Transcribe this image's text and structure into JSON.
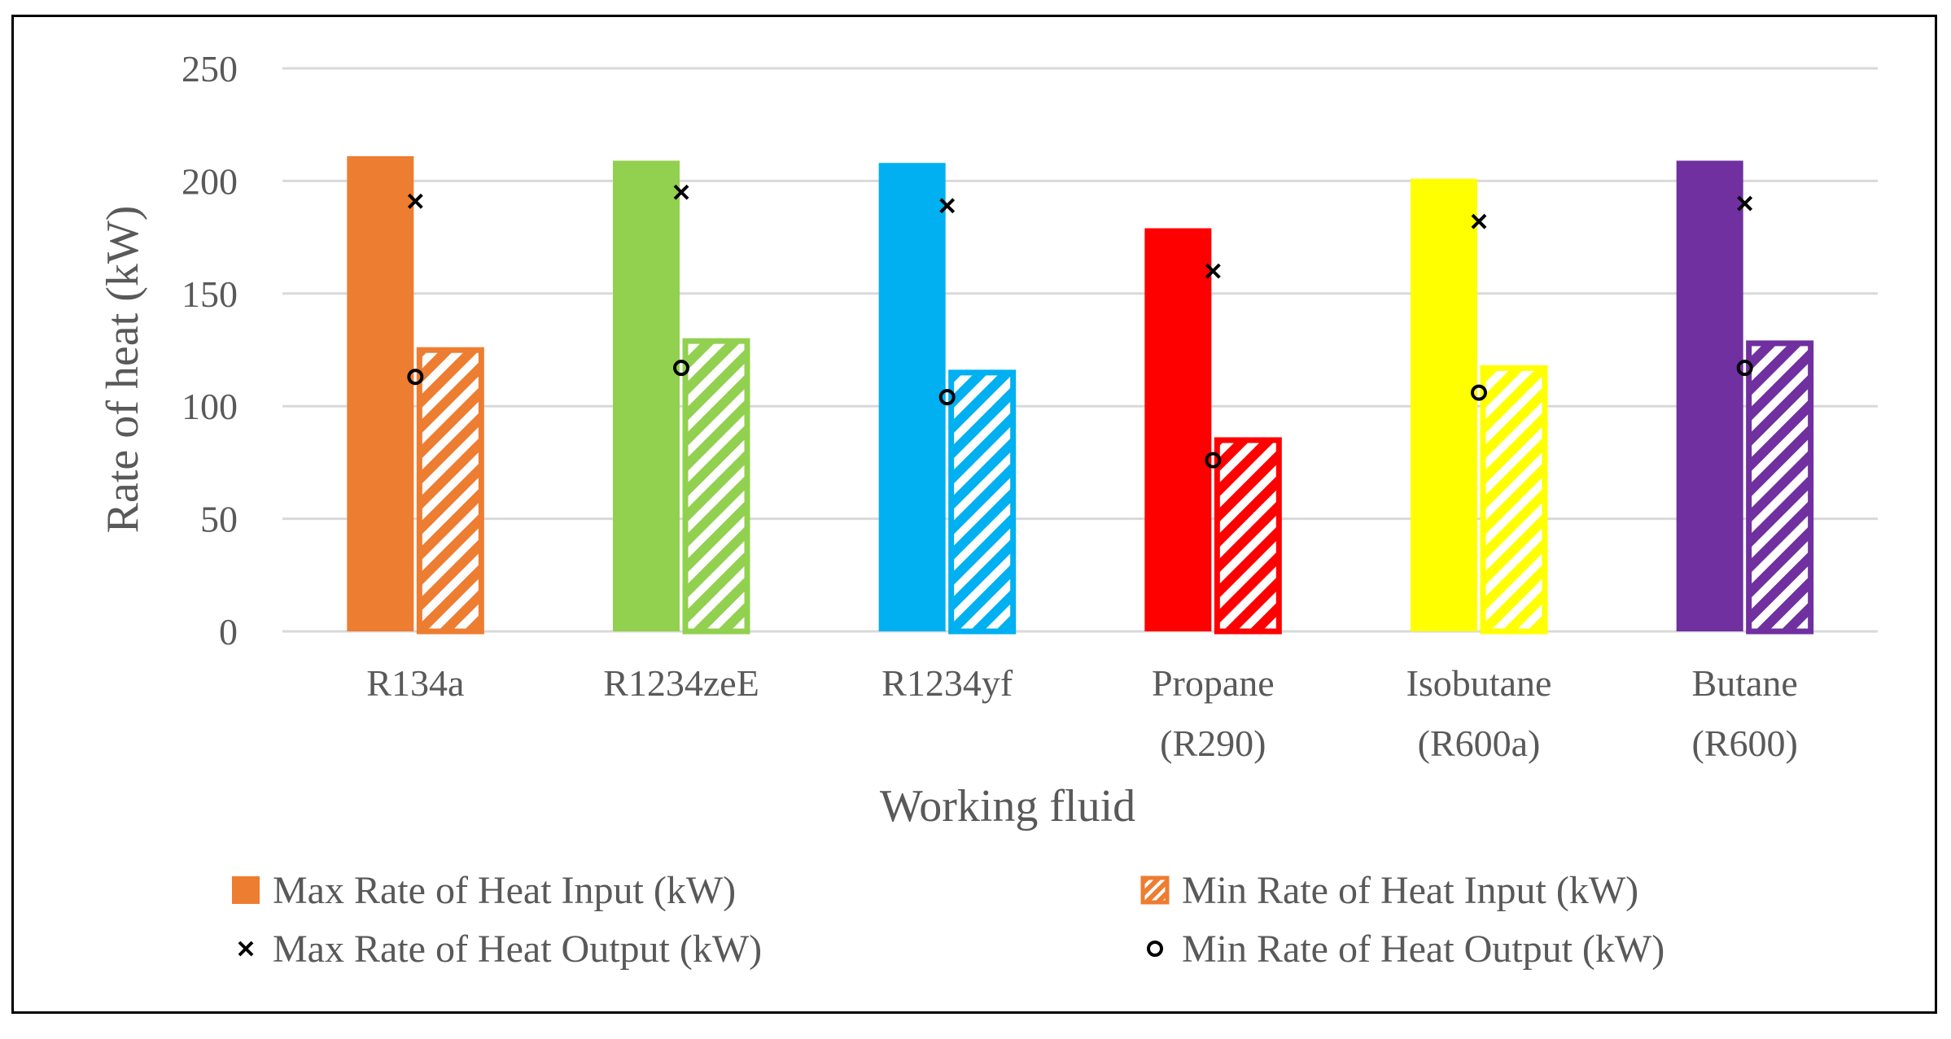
{
  "chart_data": {
    "type": "bar",
    "title": "",
    "xlabel": "Working fluid",
    "ylabel": "Rate of heat (kW)",
    "ylim": [
      0,
      250
    ],
    "yticks": [
      0,
      50,
      100,
      150,
      200,
      250
    ],
    "grid": true,
    "legend_position": "bottom",
    "categories": [
      [
        "R134a"
      ],
      [
        "R1234zeE"
      ],
      [
        "R1234yf"
      ],
      [
        "Propane",
        "(R290)"
      ],
      [
        "Isobutane",
        "(R600a)"
      ],
      [
        "Butane",
        "(R600)"
      ]
    ],
    "category_colors": [
      "#ED7D31",
      "#92D050",
      "#00B0F0",
      "#FF0000",
      "#FFFF00",
      "#7030A0"
    ],
    "series": [
      {
        "name": "Max Rate of Heat Input (kW)",
        "kind": "bar",
        "style": "solid",
        "values": [
          211,
          209,
          208,
          179,
          201,
          209
        ]
      },
      {
        "name": "Min Rate of Heat Input (kW)",
        "kind": "bar",
        "style": "hatched",
        "values": [
          126,
          130,
          116,
          86,
          118,
          129
        ]
      },
      {
        "name": "Max Rate of Heat Output (kW)",
        "kind": "marker",
        "marker": "x",
        "values": [
          191,
          195,
          189,
          160,
          182,
          190
        ]
      },
      {
        "name": "Min Rate of Heat Output (kW)",
        "kind": "marker",
        "marker": "o",
        "values": [
          113,
          117,
          104,
          76,
          106,
          117
        ]
      }
    ],
    "legend_colors": {
      "max_input": "#ED7D31",
      "min_input": "#ED7D31",
      "markers": "#000000"
    },
    "gridline_color": "#D9D9D9",
    "text_color": "#595959"
  }
}
